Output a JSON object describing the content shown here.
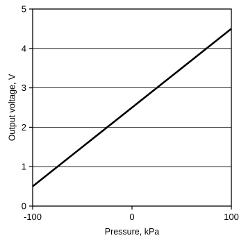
{
  "chart_data": {
    "type": "line",
    "title": "",
    "xlabel": "Pressure, kPa",
    "ylabel": "Output voltage, V",
    "xlim": [
      -100,
      100
    ],
    "ylim": [
      0,
      5
    ],
    "x_ticks": [
      -100,
      0,
      100
    ],
    "y_ticks": [
      0,
      1,
      2,
      3,
      4,
      5
    ],
    "x_tick_labels": [
      "-100",
      "0",
      "100"
    ],
    "y_tick_labels": [
      "0",
      "1",
      "2",
      "3",
      "4",
      "5"
    ],
    "grid": "horizontal",
    "legend": "none",
    "series": [
      {
        "x": [
          -100,
          100
        ],
        "y": [
          0.5,
          4.5
        ],
        "color": "#000000"
      }
    ]
  }
}
